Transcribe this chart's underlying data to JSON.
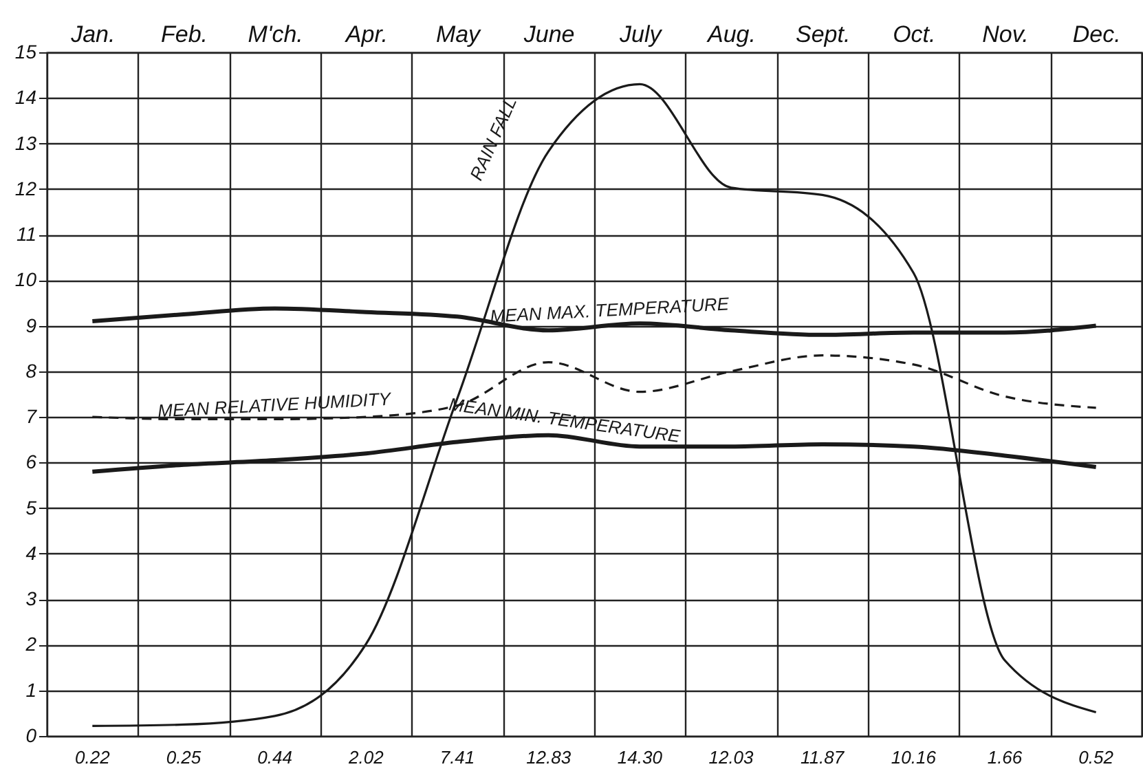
{
  "chart_data": {
    "type": "line",
    "categories": [
      "Jan.",
      "Feb.",
      "M'ch.",
      "Apr.",
      "May",
      "June",
      "July",
      "Aug.",
      "Sept.",
      "Oct.",
      "Nov.",
      "Dec."
    ],
    "ylim": [
      0,
      15
    ],
    "yticks": [
      0,
      1,
      2,
      3,
      4,
      5,
      6,
      7,
      8,
      9,
      10,
      11,
      12,
      13,
      14,
      15
    ],
    "grid": true,
    "marker": "none",
    "series": [
      {
        "name": "RAIN FALL",
        "color": "#1a1a1a",
        "line_style": "solid",
        "values": [
          0.22,
          0.25,
          0.44,
          2.02,
          7.41,
          12.83,
          14.3,
          12.03,
          11.87,
          10.16,
          1.66,
          0.52
        ],
        "value_labels": [
          "0.22",
          "0.25",
          "0.44",
          "2.02",
          "7.41",
          "12.83",
          "14.30",
          "12.03",
          "11.87",
          "10.16",
          "1.66",
          "0.52"
        ]
      },
      {
        "name": "MEAN MAX. TEMPERATURE",
        "color": "#1a1a1a",
        "line_style": "solid",
        "values": [
          9.1,
          9.25,
          9.38,
          9.3,
          9.2,
          8.9,
          9.05,
          8.9,
          8.8,
          8.85,
          8.85,
          9.0
        ]
      },
      {
        "name": "MEAN RELATIVE HUMIDITY",
        "color": "#1a1a1a",
        "line_style": "dashed",
        "values": [
          7.0,
          6.95,
          6.95,
          7.0,
          7.25,
          8.2,
          7.55,
          8.0,
          8.35,
          8.15,
          7.45,
          7.2
        ]
      },
      {
        "name": "MEAN MIN. TEMPERATURE",
        "color": "#1a1a1a",
        "line_style": "solid",
        "values": [
          5.8,
          5.95,
          6.05,
          6.2,
          6.45,
          6.6,
          6.35,
          6.35,
          6.4,
          6.35,
          6.15,
          5.9
        ]
      }
    ]
  }
}
